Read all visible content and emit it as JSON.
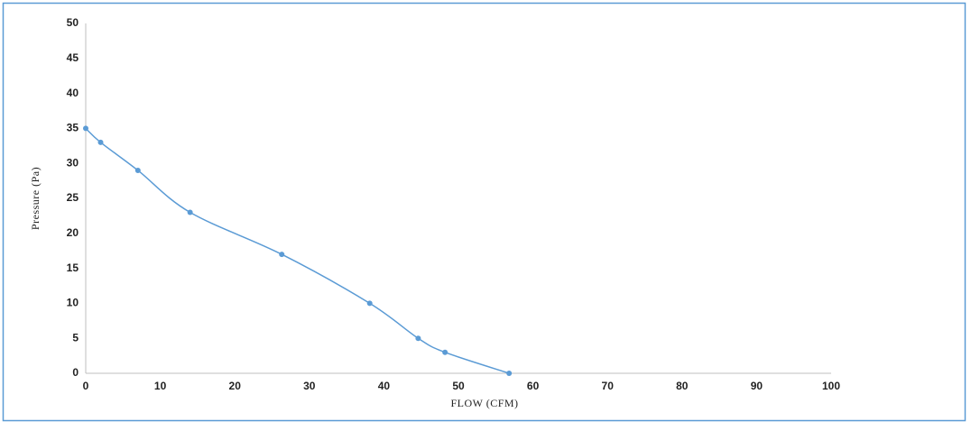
{
  "chart_data": {
    "type": "line",
    "smooth": true,
    "color": "#5b9bd5",
    "axis_color": "#bfbfbf",
    "frame_color": "#5b9bd5",
    "grid": false,
    "xlabel": "FLOW (CFM)",
    "ylabel": "Pressure (Pa)",
    "x": [
      0,
      2,
      7,
      14,
      26.3,
      38.1,
      44.6,
      48.2,
      56.8
    ],
    "values": [
      35,
      33,
      29,
      23,
      17,
      10,
      5,
      3,
      0
    ],
    "xlim": [
      0,
      100
    ],
    "xticks": [
      0,
      10,
      20,
      30,
      40,
      50,
      60,
      70,
      80,
      90,
      100
    ],
    "ylim": [
      0,
      50
    ],
    "yticks": [
      0,
      5,
      10,
      15,
      20,
      25,
      30,
      35,
      40,
      45,
      50
    ]
  }
}
